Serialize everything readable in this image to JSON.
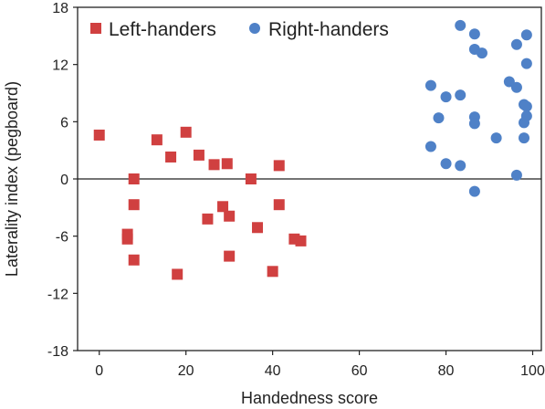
{
  "chart_data": {
    "type": "scatter",
    "xlabel": "Handedness score",
    "ylabel": "Laterality index (pegboard)",
    "xlim": [
      -5,
      102
    ],
    "ylim": [
      -18,
      18
    ],
    "xticks": [
      0,
      20,
      40,
      60,
      80,
      100
    ],
    "yticks": [
      -18,
      -12,
      -6,
      0,
      6,
      12,
      18
    ],
    "grid": false,
    "zero_line": true,
    "legend_position": "top-left",
    "series": [
      {
        "name": "Left-handers",
        "marker": "square",
        "color": "#d04040",
        "points": [
          {
            "x": 0,
            "y": 4.6
          },
          {
            "x": 6.5,
            "y": -5.8
          },
          {
            "x": 6.5,
            "y": -6.3
          },
          {
            "x": 8,
            "y": 0
          },
          {
            "x": 8,
            "y": -2.7
          },
          {
            "x": 8,
            "y": -8.5
          },
          {
            "x": 13.3,
            "y": 4.1
          },
          {
            "x": 16.5,
            "y": 2.3
          },
          {
            "x": 18,
            "y": -10
          },
          {
            "x": 20,
            "y": 4.9
          },
          {
            "x": 23,
            "y": 2.5
          },
          {
            "x": 25,
            "y": -4.2
          },
          {
            "x": 26.5,
            "y": 1.5
          },
          {
            "x": 28.5,
            "y": -2.9
          },
          {
            "x": 29.5,
            "y": 1.6
          },
          {
            "x": 30,
            "y": -3.9
          },
          {
            "x": 30,
            "y": -8.1
          },
          {
            "x": 35,
            "y": 0
          },
          {
            "x": 36.5,
            "y": -5.1
          },
          {
            "x": 40,
            "y": -9.7
          },
          {
            "x": 41.5,
            "y": 1.4
          },
          {
            "x": 41.5,
            "y": -2.7
          },
          {
            "x": 45,
            "y": -6.3
          },
          {
            "x": 46.5,
            "y": -6.5
          }
        ]
      },
      {
        "name": "Right-handers",
        "marker": "circle",
        "color": "#4f81c7",
        "points": [
          {
            "x": 76.5,
            "y": 9.8
          },
          {
            "x": 76.5,
            "y": 3.4
          },
          {
            "x": 78.3,
            "y": 6.4
          },
          {
            "x": 80,
            "y": 8.6
          },
          {
            "x": 80,
            "y": 1.6
          },
          {
            "x": 83.3,
            "y": 16.1
          },
          {
            "x": 83.3,
            "y": 8.8
          },
          {
            "x": 83.3,
            "y": 1.4
          },
          {
            "x": 86.6,
            "y": 15.2
          },
          {
            "x": 86.6,
            "y": 13.6
          },
          {
            "x": 86.6,
            "y": 6.5
          },
          {
            "x": 86.6,
            "y": 5.8
          },
          {
            "x": 86.6,
            "y": -1.3
          },
          {
            "x": 88.3,
            "y": 13.2
          },
          {
            "x": 91.6,
            "y": 4.3
          },
          {
            "x": 94.6,
            "y": 10.2
          },
          {
            "x": 96.3,
            "y": 14.1
          },
          {
            "x": 96.3,
            "y": 9.6
          },
          {
            "x": 96.3,
            "y": 0.4
          },
          {
            "x": 98,
            "y": 7.8
          },
          {
            "x": 98,
            "y": 5.9
          },
          {
            "x": 98,
            "y": 4.3
          },
          {
            "x": 98.6,
            "y": 15.1
          },
          {
            "x": 98.6,
            "y": 12.1
          },
          {
            "x": 98.6,
            "y": 7.6
          },
          {
            "x": 98.6,
            "y": 6.6
          }
        ]
      }
    ]
  }
}
